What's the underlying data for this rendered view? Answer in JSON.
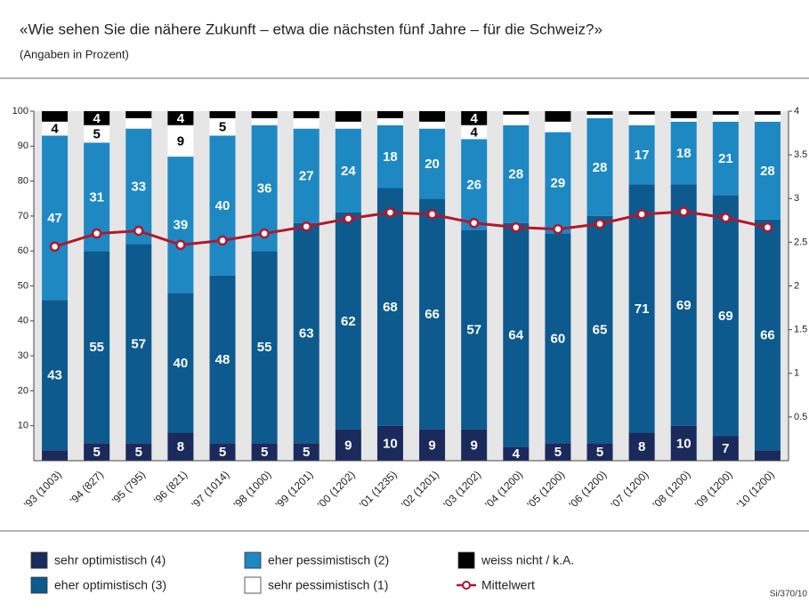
{
  "chart_data": {
    "type": "bar",
    "title": "«Wie sehen Sie die nähere Zukunft – etwa die nächsten fünf Jahre – für die Schweiz?»",
    "subtitle": "(Angaben in Prozent)",
    "footnote": "Si/370/10",
    "stacked": true,
    "categories": [
      "'93 (1003)",
      "'94 (827)",
      "'95 (795)",
      "'96 (821)",
      "'97 (1014)",
      "'98 (1000)",
      "'99 (1201)",
      "'00 (1202)",
      "'01 (1235)",
      "'02 (1201)",
      "'03 (1202)",
      "'04 (1200)",
      "'05 (1200)",
      "'06 (1200)",
      "'07 (1200)",
      "'08 (1200)",
      "'09 (1200)",
      "'10 (1200)"
    ],
    "series": [
      {
        "name": "sehr optimistisch (4)",
        "color": "#1b2a5c",
        "values": [
          3,
          5,
          5,
          8,
          5,
          5,
          5,
          9,
          10,
          9,
          9,
          4,
          5,
          5,
          8,
          10,
          7,
          3
        ]
      },
      {
        "name": "eher optimistisch (3)",
        "color": "#0d5a8e",
        "values": [
          43,
          55,
          57,
          40,
          48,
          55,
          63,
          62,
          68,
          66,
          57,
          64,
          60,
          65,
          71,
          69,
          69,
          66
        ]
      },
      {
        "name": "eher pessimistisch (2)",
        "color": "#1e88c3",
        "values": [
          47,
          31,
          33,
          39,
          40,
          36,
          27,
          24,
          18,
          20,
          26,
          28,
          29,
          28,
          17,
          18,
          21,
          28
        ]
      },
      {
        "name": "sehr pessimistisch (1)",
        "color": "#ffffff",
        "values": [
          4,
          5,
          3,
          9,
          5,
          2,
          3,
          2,
          2,
          2,
          4,
          3,
          3,
          1,
          3,
          1,
          2,
          2
        ]
      },
      {
        "name": "weiss nicht / k.A.",
        "color": "#000000",
        "values": [
          3,
          4,
          2,
          4,
          2,
          2,
          2,
          3,
          2,
          3,
          4,
          1,
          3,
          1,
          1,
          2,
          1,
          1
        ]
      },
      {
        "name": "Mittelwert",
        "type": "line",
        "axis": "y2",
        "color": "#b0182e",
        "values": [
          2.45,
          2.6,
          2.63,
          2.47,
          2.52,
          2.6,
          2.68,
          2.77,
          2.84,
          2.82,
          2.72,
          2.67,
          2.65,
          2.71,
          2.82,
          2.85,
          2.78,
          2.67
        ]
      }
    ],
    "ylim": [
      0,
      100
    ],
    "yticks": [
      10,
      20,
      30,
      40,
      50,
      60,
      70,
      80,
      90,
      100
    ],
    "y2lim": [
      0,
      4
    ],
    "y2ticks": [
      0.5,
      1,
      1.5,
      2,
      2.5,
      3,
      3.5,
      4
    ]
  }
}
